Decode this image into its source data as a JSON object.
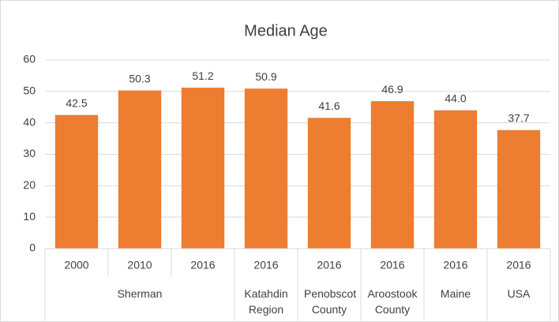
{
  "chart_data": {
    "type": "bar",
    "title": "Median Age",
    "categories": [
      "2000",
      "2010",
      "2016",
      "2016",
      "2016",
      "2016",
      "2016",
      "2016"
    ],
    "groups": [
      {
        "name": "Sherman",
        "span": 3
      },
      {
        "name": "Katahdin Region",
        "span": 1
      },
      {
        "name": "Penobscot County",
        "span": 1
      },
      {
        "name": "Aroostook County",
        "span": 1
      },
      {
        "name": "Maine",
        "span": 1
      },
      {
        "name": "USA",
        "span": 1
      }
    ],
    "values": [
      42.5,
      50.3,
      51.2,
      50.9,
      41.6,
      46.9,
      44.0,
      37.7
    ],
    "value_labels": [
      "42.5",
      "50.3",
      "51.2",
      "50.9",
      "41.6",
      "46.9",
      "44.0",
      "37.7"
    ],
    "color": "#ed7d31",
    "ylim": [
      0,
      60
    ],
    "yticks": [
      0,
      10,
      20,
      30,
      40,
      50,
      60
    ],
    "grid": true
  }
}
